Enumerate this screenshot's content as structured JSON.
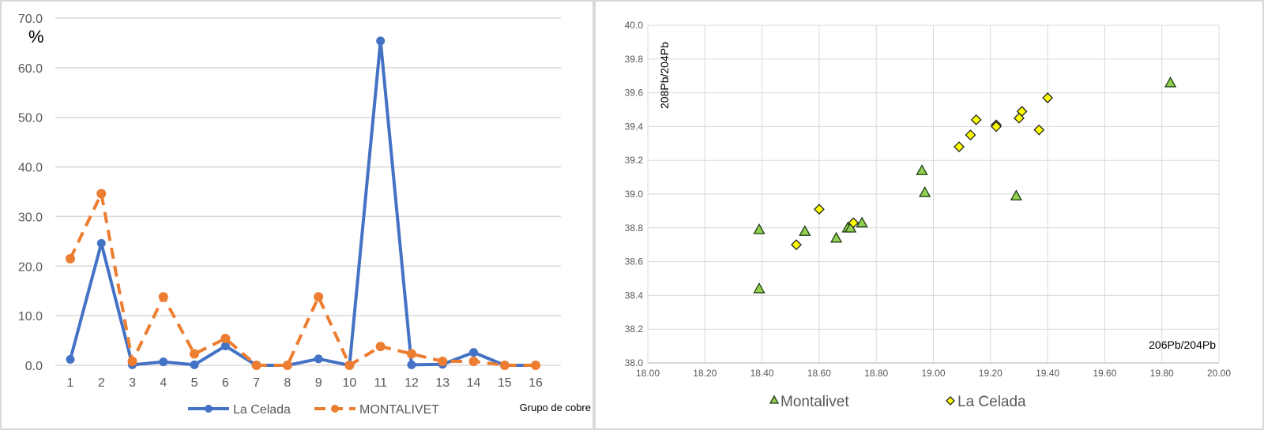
{
  "chart_data": [
    {
      "type": "line",
      "ylabel": "%",
      "xlabel": "Grupo de cobre",
      "categories": [
        "1",
        "2",
        "3",
        "4",
        "5",
        "6",
        "7",
        "8",
        "9",
        "10",
        "11",
        "12",
        "13",
        "14",
        "15",
        "16"
      ],
      "ylim": [
        0,
        70
      ],
      "yticks": [
        "0.0",
        "10.0",
        "20.0",
        "30.0",
        "40.0",
        "50.0",
        "60.0",
        "70.0"
      ],
      "grid": "horizontal",
      "legend": "bottom",
      "series": [
        {
          "name": "La Celada",
          "style": "solid",
          "color": "#4472c4",
          "values": [
            1.2,
            24.6,
            0.1,
            0.7,
            0.1,
            3.9,
            0,
            0,
            1.3,
            0,
            65.4,
            0.1,
            0.2,
            2.6,
            0,
            0
          ]
        },
        {
          "name": "MONTALIVET",
          "style": "dashed",
          "color": "#ed7d31",
          "values": [
            21.5,
            34.6,
            0.8,
            13.8,
            2.3,
            5.4,
            0,
            0,
            13.8,
            0,
            3.8,
            2.3,
            0.8,
            0.8,
            0,
            0
          ]
        }
      ]
    },
    {
      "type": "scatter",
      "xlabel": "206Pb/204Pb",
      "ylabel": "208Pb/204Pb",
      "xlim": [
        18.0,
        20.0
      ],
      "ylim": [
        38.0,
        40.0
      ],
      "xticks": [
        "18.00",
        "18.20",
        "18.40",
        "18.60",
        "18.80",
        "19.00",
        "19.20",
        "19.40",
        "19.60",
        "19.80",
        "20.00"
      ],
      "yticks": [
        "38.0",
        "38.2",
        "38.4",
        "38.6",
        "38.8",
        "39.0",
        "39.2",
        "39.4",
        "39.6",
        "39.8",
        "40.0"
      ],
      "grid": "both",
      "legend": "bottom",
      "series": [
        {
          "name": "Montalivet",
          "marker": "triangle",
          "color": "#92d050",
          "points": [
            [
              18.39,
              38.79
            ],
            [
              18.39,
              38.44
            ],
            [
              18.55,
              38.78
            ],
            [
              18.66,
              38.74
            ],
            [
              18.7,
              38.8
            ],
            [
              18.71,
              38.8
            ],
            [
              18.75,
              38.83
            ],
            [
              18.96,
              39.14
            ],
            [
              18.97,
              39.01
            ],
            [
              19.29,
              38.99
            ],
            [
              19.83,
              39.66
            ]
          ]
        },
        {
          "name": "La Celada",
          "marker": "diamond",
          "color": "#ffff00",
          "points": [
            [
              18.52,
              38.7
            ],
            [
              18.6,
              38.91
            ],
            [
              18.72,
              38.83
            ],
            [
              19.09,
              39.28
            ],
            [
              19.13,
              39.35
            ],
            [
              19.15,
              39.44
            ],
            [
              19.22,
              39.41
            ],
            [
              19.22,
              39.4
            ],
            [
              19.31,
              39.49
            ],
            [
              19.3,
              39.45
            ],
            [
              19.37,
              39.38
            ],
            [
              19.4,
              39.57
            ]
          ]
        }
      ]
    }
  ]
}
